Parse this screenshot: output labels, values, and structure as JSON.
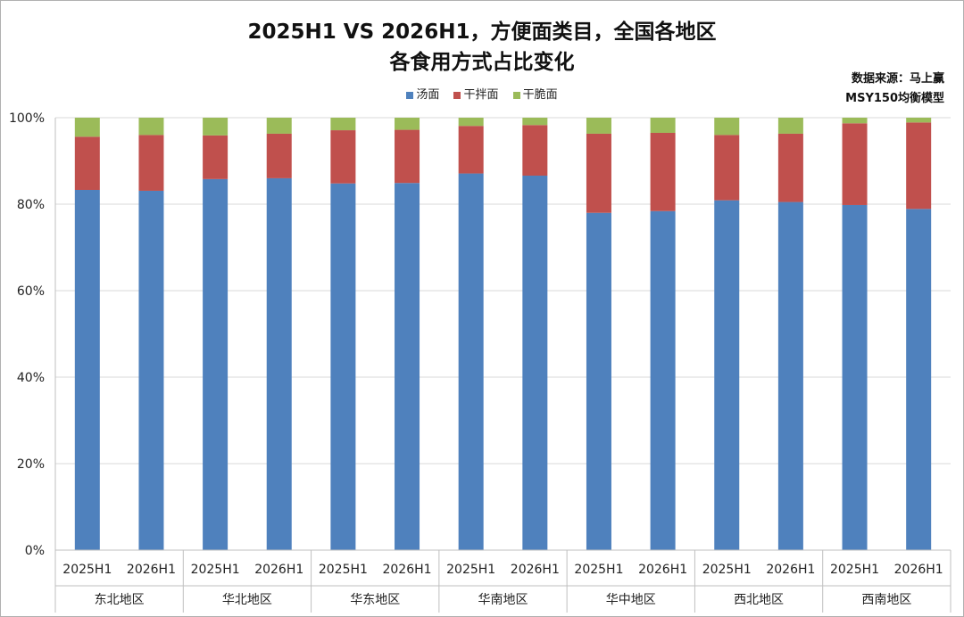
{
  "title_line1": "2025H1 VS 2026H1，方便面类目，全国各地区",
  "title_line2": "各食用方式占比变化",
  "source_line1": "数据来源：马上赢",
  "source_line2": "MSY150均衡模型",
  "colors": {
    "汤面": "#4f81bd",
    "干拌面": "#c0504d",
    "干脆面": "#9bbb59",
    "grid": "#d9d9d9",
    "axis": "#bfbfbf"
  },
  "chart_data": {
    "type": "bar",
    "stacked": true,
    "percent": true,
    "title": "2025H1 VS 2026H1，方便面类目，全国各地区 各食用方式占比变化",
    "ylim": [
      0,
      100
    ],
    "yticks": [
      "0%",
      "20%",
      "40%",
      "60%",
      "80%",
      "100%"
    ],
    "legend_position": "top",
    "grid": true,
    "groups": [
      "东北地区",
      "华北地区",
      "华东地区",
      "华南地区",
      "华中地区",
      "西北地区",
      "西南地区"
    ],
    "periods": [
      "2025H1",
      "2026H1"
    ],
    "categories": [
      "2025H1",
      "2026H1",
      "2025H1",
      "2026H1",
      "2025H1",
      "2026H1",
      "2025H1",
      "2026H1",
      "2025H1",
      "2026H1",
      "2025H1",
      "2026H1",
      "2025H1",
      "2026H1"
    ],
    "series": [
      {
        "name": "汤面",
        "values": [
          83.3,
          83.1,
          85.8,
          86.0,
          84.8,
          84.9,
          87.1,
          86.6,
          78.0,
          78.4,
          80.9,
          80.5,
          79.8,
          78.9
        ]
      },
      {
        "name": "干拌面",
        "values": [
          12.3,
          12.9,
          10.1,
          10.3,
          12.3,
          12.3,
          11.0,
          11.7,
          18.3,
          18.1,
          15.1,
          15.8,
          18.9,
          20.0
        ]
      },
      {
        "name": "干脆面",
        "values": [
          4.4,
          4.0,
          4.1,
          3.7,
          2.9,
          2.8,
          1.9,
          1.7,
          3.7,
          3.5,
          4.0,
          3.7,
          1.3,
          1.1
        ]
      }
    ]
  }
}
